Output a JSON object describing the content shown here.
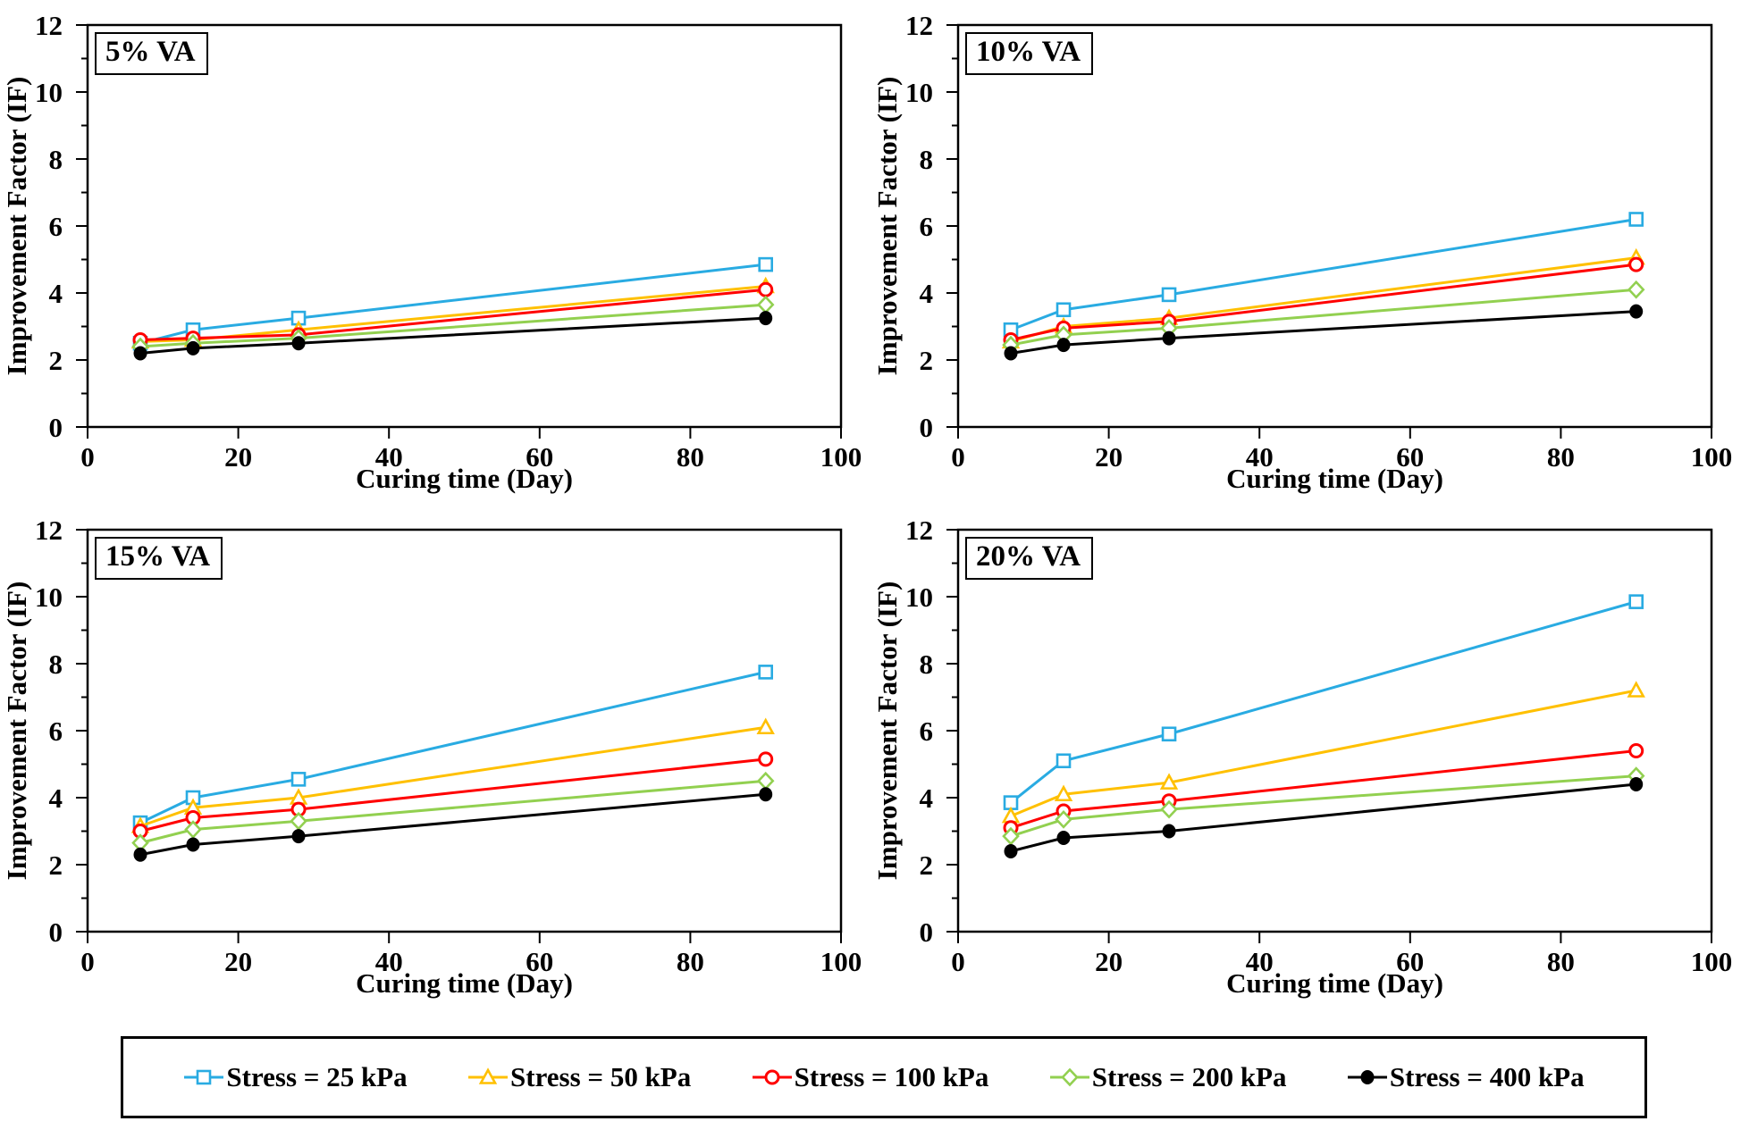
{
  "figure": {
    "xlabel": "Curing time (Day)",
    "ylabel": "Improvement Factor (IF)",
    "xlim": [
      0,
      100
    ],
    "ylim": [
      0,
      12
    ],
    "x_ticks": [
      0,
      20,
      40,
      60,
      80,
      100
    ],
    "y_ticks": [
      0,
      2,
      4,
      6,
      8,
      10,
      12
    ],
    "y_minor_step": 1,
    "grid": false,
    "legend_position": "bottom"
  },
  "legend": {
    "items": [
      {
        "label": "Stress = 25 kPa",
        "color": "#29ABE2",
        "marker": "square"
      },
      {
        "label": "Stress = 50 kPa",
        "color": "#FFC000",
        "marker": "triangle"
      },
      {
        "label": "Stress = 100 kPa",
        "color": "#FF0000",
        "marker": "circle"
      },
      {
        "label": "Stress = 200 kPa",
        "color": "#92D050",
        "marker": "diamond"
      },
      {
        "label": "Stress = 400 kPa",
        "color": "#000000",
        "marker": "dot"
      }
    ]
  },
  "chart_data": [
    {
      "type": "line",
      "title": "5% VA",
      "xlabel": "Curing time (Day)",
      "ylabel": "Improvement Factor (IF)",
      "xlim": [
        0,
        100
      ],
      "ylim": [
        0,
        12
      ],
      "x": [
        7,
        14,
        28,
        90
      ],
      "series": [
        {
          "name": "Stress = 25 kPa",
          "values": [
            2.5,
            2.9,
            3.25,
            4.85
          ]
        },
        {
          "name": "Stress = 50 kPa",
          "values": [
            2.55,
            2.6,
            2.9,
            4.2
          ]
        },
        {
          "name": "Stress = 100 kPa",
          "values": [
            2.6,
            2.65,
            2.75,
            4.1
          ]
        },
        {
          "name": "Stress = 200 kPa",
          "values": [
            2.4,
            2.5,
            2.65,
            3.65
          ]
        },
        {
          "name": "Stress = 400 kPa",
          "values": [
            2.2,
            2.35,
            2.5,
            3.25
          ]
        }
      ]
    },
    {
      "type": "line",
      "title": "10% VA",
      "xlabel": "Curing time (Day)",
      "ylabel": "Improvement Factor (IF)",
      "xlim": [
        0,
        100
      ],
      "ylim": [
        0,
        12
      ],
      "x": [
        7,
        14,
        28,
        90
      ],
      "series": [
        {
          "name": "Stress = 25 kPa",
          "values": [
            2.9,
            3.5,
            3.95,
            6.2
          ]
        },
        {
          "name": "Stress = 50 kPa",
          "values": [
            2.55,
            3.0,
            3.25,
            5.05
          ]
        },
        {
          "name": "Stress = 100 kPa",
          "values": [
            2.6,
            2.95,
            3.15,
            4.85
          ]
        },
        {
          "name": "Stress = 200 kPa",
          "values": [
            2.45,
            2.75,
            2.95,
            4.1
          ]
        },
        {
          "name": "Stress = 400 kPa",
          "values": [
            2.2,
            2.45,
            2.65,
            3.45
          ]
        }
      ]
    },
    {
      "type": "line",
      "title": "15% VA",
      "xlabel": "Curing time (Day)",
      "ylabel": "Improvement Factor (IF)",
      "xlim": [
        0,
        100
      ],
      "ylim": [
        0,
        12
      ],
      "x": [
        7,
        14,
        28,
        90
      ],
      "series": [
        {
          "name": "Stress = 25 kPa",
          "values": [
            3.25,
            4.0,
            4.55,
            7.75
          ]
        },
        {
          "name": "Stress = 50 kPa",
          "values": [
            3.15,
            3.7,
            4.0,
            6.1
          ]
        },
        {
          "name": "Stress = 100 kPa",
          "values": [
            3.0,
            3.4,
            3.65,
            5.15
          ]
        },
        {
          "name": "Stress = 200 kPa",
          "values": [
            2.65,
            3.05,
            3.3,
            4.5
          ]
        },
        {
          "name": "Stress = 400 kPa",
          "values": [
            2.3,
            2.6,
            2.85,
            4.1
          ]
        }
      ]
    },
    {
      "type": "line",
      "title": "20% VA",
      "xlabel": "Curing time (Day)",
      "ylabel": "Improvement Factor (IF)",
      "xlim": [
        0,
        100
      ],
      "ylim": [
        0,
        12
      ],
      "x": [
        7,
        14,
        28,
        90
      ],
      "series": [
        {
          "name": "Stress = 25 kPa",
          "values": [
            3.85,
            5.1,
            5.9,
            9.85
          ]
        },
        {
          "name": "Stress = 50 kPa",
          "values": [
            3.45,
            4.1,
            4.45,
            7.2
          ]
        },
        {
          "name": "Stress = 100 kPa",
          "values": [
            3.1,
            3.6,
            3.9,
            5.4
          ]
        },
        {
          "name": "Stress = 200 kPa",
          "values": [
            2.85,
            3.35,
            3.65,
            4.65
          ]
        },
        {
          "name": "Stress = 400 kPa",
          "values": [
            2.4,
            2.8,
            3.0,
            4.4
          ]
        }
      ]
    }
  ]
}
